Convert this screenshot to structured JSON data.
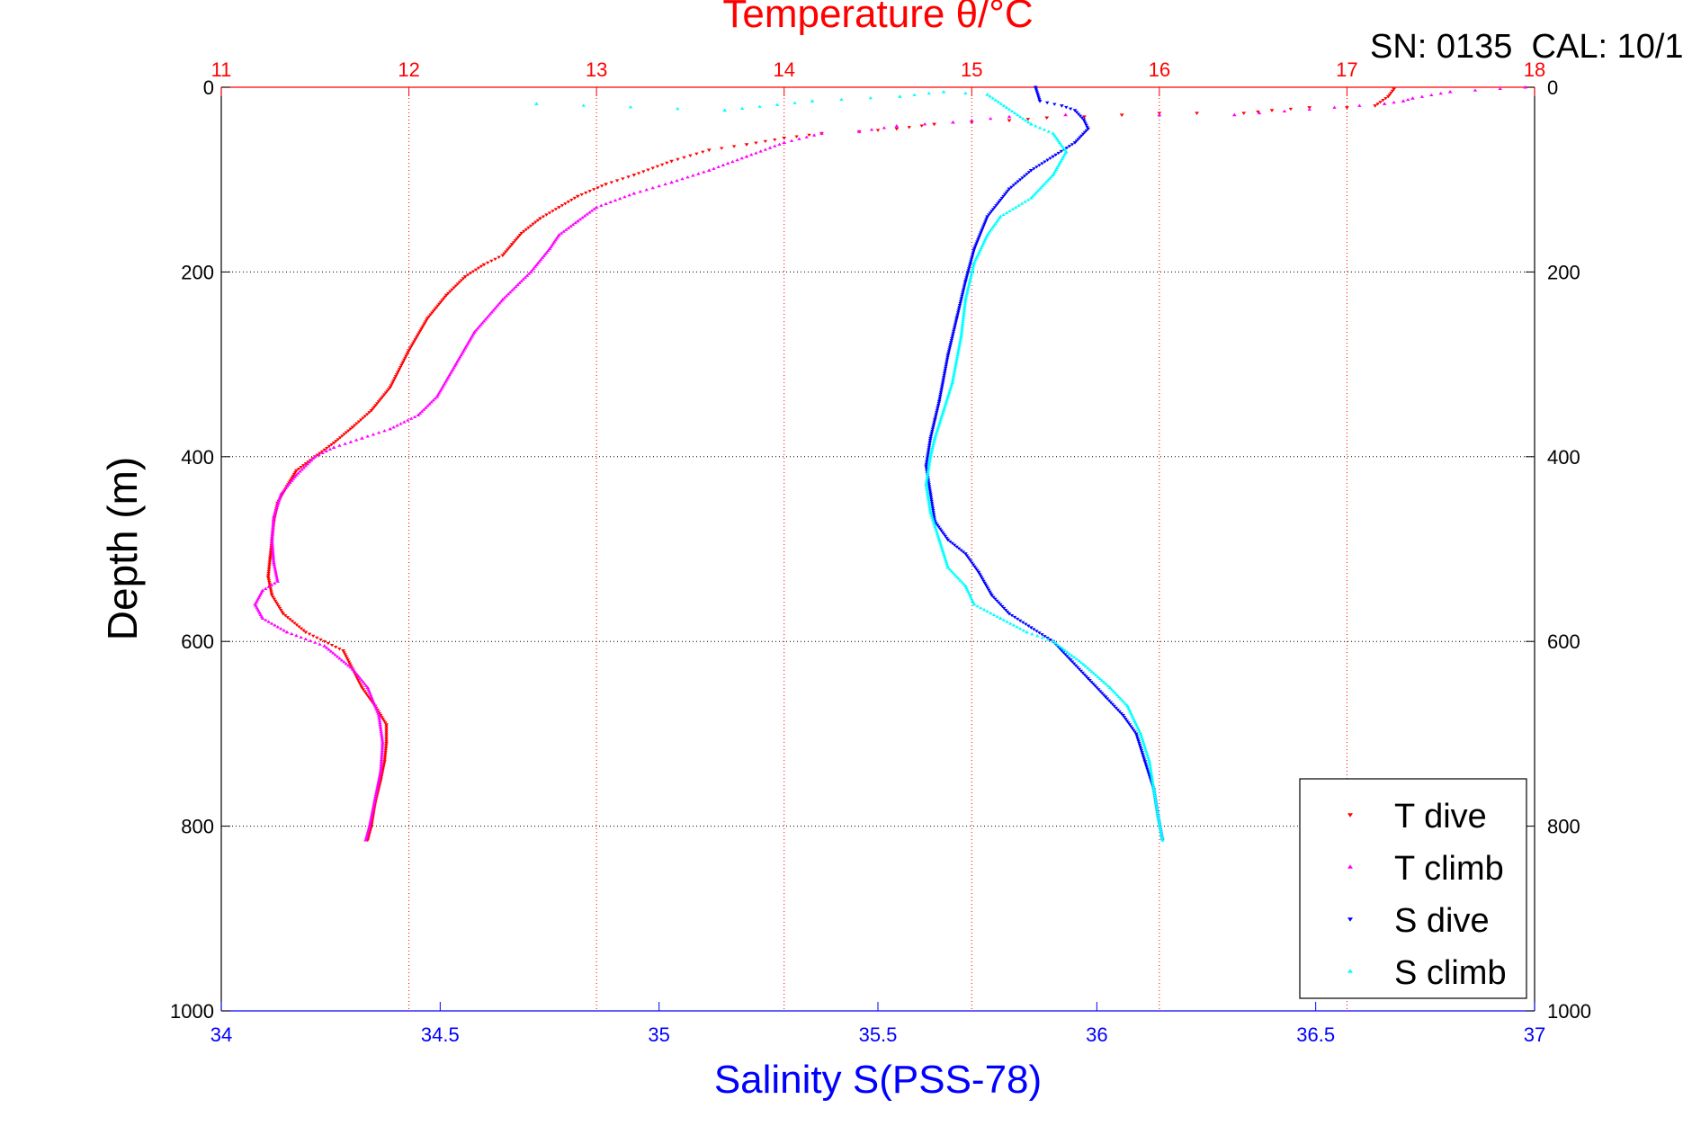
{
  "chart_data": {
    "type": "scatter",
    "title": "Temperature θ/°C",
    "annotation": "SN: 0135  CAL: 10/1",
    "xlabel": "Salinity S(PSS-78)",
    "ylabel": "Depth (m)",
    "x_top": {
      "label": "Temperature θ/°C",
      "lim": [
        11,
        18
      ],
      "ticks": [
        "11",
        "12",
        "13",
        "14",
        "15",
        "16",
        "17",
        "18"
      ],
      "color": "#ff0000"
    },
    "x_bottom": {
      "label": "Salinity S(PSS-78)",
      "lim": [
        34,
        37
      ],
      "ticks": [
        "34",
        "34.5",
        "35",
        "35.5",
        "36",
        "36.5",
        "37"
      ],
      "color": "#0000ff"
    },
    "y": {
      "lim": [
        0,
        1000
      ],
      "reversed": true,
      "ticks": [
        "0",
        "200",
        "400",
        "600",
        "800",
        "1000"
      ]
    },
    "grid": true,
    "legend_position": "bottom-right",
    "series": [
      {
        "name": "T dive",
        "axis": "top",
        "marker": "triangle-down",
        "color": "#ff0000",
        "points": [
          [
            17.25,
            2
          ],
          [
            17.22,
            10
          ],
          [
            17.15,
            20
          ],
          [
            17.0,
            22
          ],
          [
            16.8,
            22
          ],
          [
            16.6,
            25
          ],
          [
            16.45,
            28
          ],
          [
            16.2,
            28
          ],
          [
            16.0,
            28
          ],
          [
            15.8,
            30
          ],
          [
            15.6,
            32
          ],
          [
            15.4,
            33
          ],
          [
            15.2,
            36
          ],
          [
            15.0,
            38
          ],
          [
            14.8,
            40
          ],
          [
            14.6,
            45
          ],
          [
            14.4,
            48
          ],
          [
            14.2,
            50
          ],
          [
            14.0,
            55
          ],
          [
            13.8,
            62
          ],
          [
            13.6,
            68
          ],
          [
            13.4,
            80
          ],
          [
            13.2,
            95
          ],
          [
            13.05,
            105
          ],
          [
            12.9,
            118
          ],
          [
            12.8,
            130
          ],
          [
            12.7,
            142
          ],
          [
            12.6,
            158
          ],
          [
            12.55,
            170
          ],
          [
            12.5,
            182
          ],
          [
            12.4,
            192
          ],
          [
            12.3,
            205
          ],
          [
            12.2,
            225
          ],
          [
            12.1,
            250
          ],
          [
            12.0,
            285
          ],
          [
            11.9,
            325
          ],
          [
            11.8,
            350
          ],
          [
            11.7,
            368
          ],
          [
            11.6,
            385
          ],
          [
            11.5,
            400
          ],
          [
            11.4,
            415
          ],
          [
            11.35,
            432
          ],
          [
            11.3,
            450
          ],
          [
            11.28,
            470
          ],
          [
            11.27,
            490
          ],
          [
            11.26,
            510
          ],
          [
            11.25,
            530
          ],
          [
            11.27,
            550
          ],
          [
            11.33,
            570
          ],
          [
            11.45,
            590
          ],
          [
            11.65,
            610
          ],
          [
            11.7,
            630
          ],
          [
            11.75,
            650
          ],
          [
            11.82,
            670
          ],
          [
            11.88,
            690
          ],
          [
            11.88,
            710
          ],
          [
            11.87,
            730
          ],
          [
            11.85,
            750
          ],
          [
            11.82,
            775
          ],
          [
            11.8,
            800
          ],
          [
            11.78,
            815
          ]
        ]
      },
      {
        "name": "T climb",
        "axis": "top",
        "marker": "triangle-up",
        "color": "#ff00ff",
        "points": [
          [
            17.95,
            0
          ],
          [
            17.55,
            5
          ],
          [
            17.35,
            12
          ],
          [
            17.3,
            15
          ],
          [
            17.2,
            18
          ],
          [
            16.4,
            30
          ],
          [
            16.0,
            30
          ],
          [
            15.5,
            30
          ],
          [
            15.2,
            32
          ],
          [
            14.9,
            38
          ],
          [
            14.6,
            42
          ],
          [
            14.4,
            48
          ],
          [
            14.2,
            50
          ],
          [
            14.0,
            60
          ],
          [
            13.8,
            75
          ],
          [
            13.6,
            90
          ],
          [
            13.4,
            103
          ],
          [
            13.2,
            115
          ],
          [
            13.0,
            130
          ],
          [
            12.9,
            145
          ],
          [
            12.8,
            160
          ],
          [
            12.75,
            175
          ],
          [
            12.65,
            200
          ],
          [
            12.5,
            230
          ],
          [
            12.35,
            265
          ],
          [
            12.25,
            300
          ],
          [
            12.15,
            335
          ],
          [
            12.05,
            355
          ],
          [
            11.9,
            370
          ],
          [
            11.75,
            380
          ],
          [
            11.6,
            390
          ],
          [
            11.5,
            400
          ],
          [
            11.4,
            420
          ],
          [
            11.32,
            440
          ],
          [
            11.28,
            465
          ],
          [
            11.27,
            490
          ],
          [
            11.28,
            515
          ],
          [
            11.3,
            535
          ],
          [
            11.22,
            545
          ],
          [
            11.18,
            560
          ],
          [
            11.22,
            575
          ],
          [
            11.35,
            590
          ],
          [
            11.55,
            605
          ],
          [
            11.7,
            630
          ],
          [
            11.78,
            650
          ],
          [
            11.84,
            680
          ],
          [
            11.86,
            710
          ],
          [
            11.85,
            740
          ],
          [
            11.82,
            770
          ],
          [
            11.79,
            800
          ],
          [
            11.77,
            815
          ]
        ]
      },
      {
        "name": "S dive",
        "axis": "bottom",
        "marker": "triangle-down",
        "color": "#0000ff",
        "points": [
          [
            35.86,
            0
          ],
          [
            35.87,
            15
          ],
          [
            35.92,
            20
          ],
          [
            35.95,
            25
          ],
          [
            35.97,
            35
          ],
          [
            35.98,
            45
          ],
          [
            35.95,
            60
          ],
          [
            35.9,
            75
          ],
          [
            35.85,
            90
          ],
          [
            35.8,
            110
          ],
          [
            35.75,
            140
          ],
          [
            35.72,
            175
          ],
          [
            35.7,
            210
          ],
          [
            35.68,
            250
          ],
          [
            35.66,
            290
          ],
          [
            35.64,
            340
          ],
          [
            35.63,
            360
          ],
          [
            35.62,
            380
          ],
          [
            35.61,
            410
          ],
          [
            35.62,
            440
          ],
          [
            35.63,
            470
          ],
          [
            35.66,
            490
          ],
          [
            35.7,
            505
          ],
          [
            35.73,
            525
          ],
          [
            35.76,
            550
          ],
          [
            35.8,
            570
          ],
          [
            35.85,
            585
          ],
          [
            35.9,
            600
          ],
          [
            35.94,
            620
          ],
          [
            35.98,
            640
          ],
          [
            36.02,
            660
          ],
          [
            36.06,
            680
          ],
          [
            36.09,
            700
          ],
          [
            36.11,
            730
          ],
          [
            36.13,
            760
          ],
          [
            36.14,
            790
          ],
          [
            36.15,
            815
          ]
        ]
      },
      {
        "name": "S climb",
        "axis": "bottom",
        "marker": "triangle-up",
        "color": "#00ffff",
        "points": [
          [
            34.72,
            18
          ],
          [
            35.15,
            25
          ],
          [
            35.35,
            15
          ],
          [
            35.55,
            10
          ],
          [
            35.65,
            5
          ],
          [
            35.75,
            8
          ],
          [
            35.85,
            40
          ],
          [
            35.9,
            50
          ],
          [
            35.93,
            70
          ],
          [
            35.9,
            95
          ],
          [
            35.85,
            120
          ],
          [
            35.78,
            140
          ],
          [
            35.75,
            160
          ],
          [
            35.72,
            190
          ],
          [
            35.7,
            230
          ],
          [
            35.69,
            270
          ],
          [
            35.67,
            320
          ],
          [
            35.65,
            350
          ],
          [
            35.63,
            380
          ],
          [
            35.62,
            400
          ],
          [
            35.61,
            430
          ],
          [
            35.62,
            460
          ],
          [
            35.64,
            490
          ],
          [
            35.66,
            520
          ],
          [
            35.7,
            540
          ],
          [
            35.72,
            560
          ],
          [
            35.78,
            575
          ],
          [
            35.84,
            590
          ],
          [
            35.9,
            600
          ],
          [
            35.97,
            625
          ],
          [
            36.03,
            650
          ],
          [
            36.07,
            670
          ],
          [
            36.1,
            700
          ],
          [
            36.12,
            730
          ],
          [
            36.13,
            760
          ],
          [
            36.14,
            790
          ],
          [
            36.15,
            815
          ]
        ]
      }
    ]
  }
}
